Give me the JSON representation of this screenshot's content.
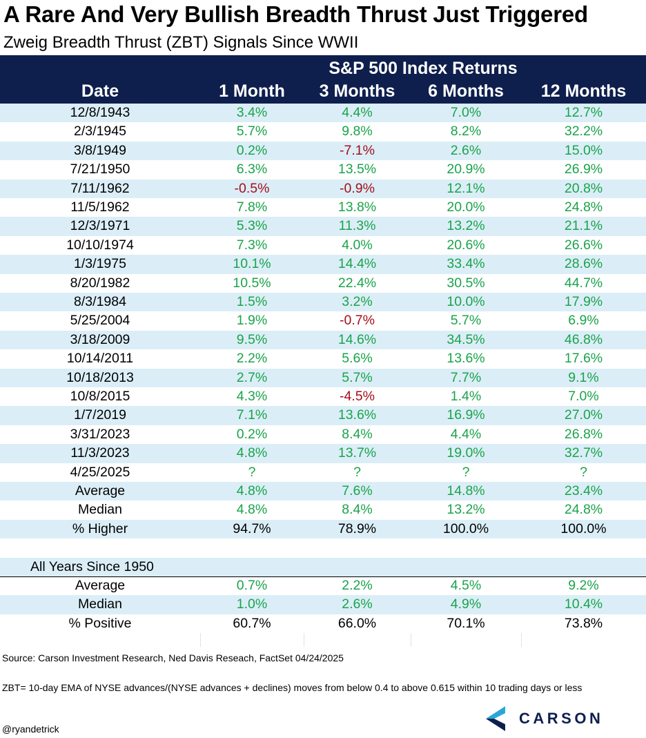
{
  "title": "A Rare And Very Bullish Breadth Thrust Just Triggered",
  "subtitle": "Zweig Breadth Thrust (ZBT) Signals Since WWII",
  "header": {
    "group": "S&P 500 Index Returns",
    "columns": [
      "Date",
      "1 Month",
      "3 Months",
      "6 Months",
      "12 Months"
    ]
  },
  "chart_data": {
    "type": "table",
    "title": "A Rare And Very Bullish Breadth Thrust Just Triggered",
    "subtitle": "Zweig Breadth Thrust (ZBT) Signals Since WWII",
    "column_group": "S&P 500 Index Returns",
    "columns": [
      "Date",
      "1 Month",
      "3 Months",
      "6 Months",
      "12 Months"
    ],
    "rows": [
      [
        "12/8/1943",
        "3.4%",
        "4.4%",
        "7.0%",
        "12.7%"
      ],
      [
        "2/3/1945",
        "5.7%",
        "9.8%",
        "8.2%",
        "32.2%"
      ],
      [
        "3/8/1949",
        "0.2%",
        "-7.1%",
        "2.6%",
        "15.0%"
      ],
      [
        "7/21/1950",
        "6.3%",
        "13.5%",
        "20.9%",
        "26.9%"
      ],
      [
        "7/11/1962",
        "-0.5%",
        "-0.9%",
        "12.1%",
        "20.8%"
      ],
      [
        "11/5/1962",
        "7.8%",
        "13.8%",
        "20.0%",
        "24.8%"
      ],
      [
        "12/3/1971",
        "5.3%",
        "11.3%",
        "13.2%",
        "21.1%"
      ],
      [
        "10/10/1974",
        "7.3%",
        "4.0%",
        "20.6%",
        "26.6%"
      ],
      [
        "1/3/1975",
        "10.1%",
        "14.4%",
        "33.4%",
        "28.6%"
      ],
      [
        "8/20/1982",
        "10.5%",
        "22.4%",
        "30.5%",
        "44.7%"
      ],
      [
        "8/3/1984",
        "1.5%",
        "3.2%",
        "10.0%",
        "17.9%"
      ],
      [
        "5/25/2004",
        "1.9%",
        "-0.7%",
        "5.7%",
        "6.9%"
      ],
      [
        "3/18/2009",
        "9.5%",
        "14.6%",
        "34.5%",
        "46.8%"
      ],
      [
        "10/14/2011",
        "2.2%",
        "5.6%",
        "13.6%",
        "17.6%"
      ],
      [
        "10/18/2013",
        "2.7%",
        "5.7%",
        "7.7%",
        "9.1%"
      ],
      [
        "10/8/2015",
        "4.3%",
        "-4.5%",
        "1.4%",
        "7.0%"
      ],
      [
        "1/7/2019",
        "7.1%",
        "13.6%",
        "16.9%",
        "27.0%"
      ],
      [
        "3/31/2023",
        "0.2%",
        "8.4%",
        "4.4%",
        "26.8%"
      ],
      [
        "11/3/2023",
        "4.8%",
        "13.7%",
        "19.0%",
        "32.7%"
      ],
      [
        "4/25/2025",
        "?",
        "?",
        "?",
        "?"
      ]
    ],
    "summary": [
      [
        "Average",
        "4.8%",
        "7.6%",
        "14.8%",
        "23.4%"
      ],
      [
        "Median",
        "4.8%",
        "8.4%",
        "13.2%",
        "24.8%"
      ],
      [
        "% Higher",
        "94.7%",
        "78.9%",
        "100.0%",
        "100.0%"
      ]
    ],
    "all_years_label": "All Years Since 1950",
    "all_years": [
      [
        "Average",
        "0.7%",
        "2.2%",
        "4.5%",
        "9.2%"
      ],
      [
        "Median",
        "1.0%",
        "2.6%",
        "4.9%",
        "10.4%"
      ],
      [
        "% Positive",
        "60.7%",
        "66.0%",
        "70.1%",
        "73.8%"
      ]
    ]
  },
  "colors": {
    "header_bg": "#0e1f4d",
    "shade": "#dbeef7",
    "positive": "#1aa34a",
    "negative": "#a50d1a"
  },
  "footer": {
    "source": "Source: Carson Investment Research, Ned Davis Reseach, FactSet 04/24/2025",
    "definition": "ZBT= 10-day EMA of NYSE advances/(NYSE advances + declines) moves from below 0.4 to above 0.615 within 10 trading days or less",
    "handle": "@ryandetrick"
  },
  "logo": {
    "word": "CARSON",
    "icon": "carson-chevron-icon"
  }
}
